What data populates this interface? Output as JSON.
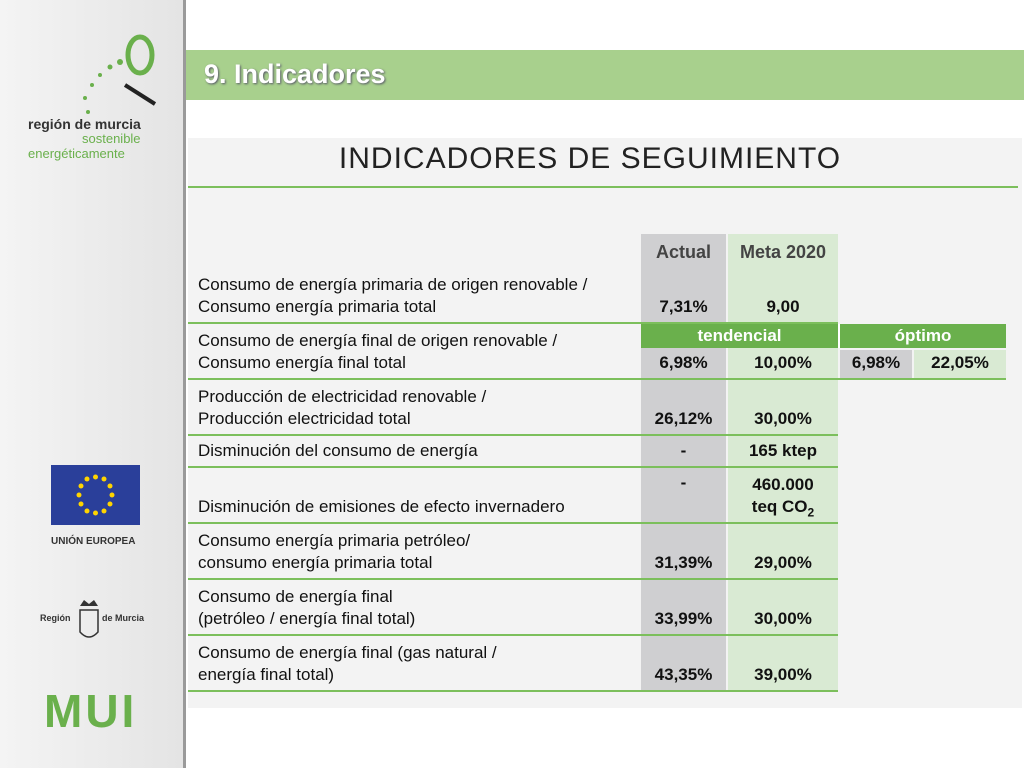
{
  "sidebar": {
    "brand": [
      "región de murcia",
      "sostenible",
      "energéticamente"
    ],
    "eu": "UNIÓN EUROPEA",
    "region": [
      "Región",
      "de Murcia"
    ],
    "mui": "MUI"
  },
  "header": {
    "title": "9.  Indicadores"
  },
  "table": {
    "title": "INDICADORES DE SEGUIMIENTO",
    "columns": [
      "Actual",
      "Meta 2020"
    ],
    "scenarios": [
      "tendencial",
      "óptimo"
    ],
    "rows": [
      {
        "label": [
          "Consumo de energía primaria de origen renovable /",
          "Consumo energía primaria total"
        ],
        "actual": "7,31%",
        "meta": [
          "9,00"
        ]
      },
      {
        "label": [
          "Consumo de energía final de origen renovable /",
          "Consumo energía final total"
        ],
        "values": [
          "6,98%",
          "10,00%",
          "6,98%",
          "22,05%"
        ]
      },
      {
        "label": [
          "Producción de electricidad renovable /",
          "Producción electricidad total"
        ],
        "actual": "26,12%",
        "meta": [
          "30,00%"
        ]
      },
      {
        "label": [
          "Disminución del consumo de energía"
        ],
        "actual": "-",
        "meta": [
          "165 ktep"
        ]
      },
      {
        "label": [
          "Disminución de emisiones de efecto invernadero"
        ],
        "actual": "-",
        "meta": [
          "460.000",
          "teq CO"
        ],
        "meta_sub": "2"
      },
      {
        "label": [
          "Consumo energía primaria petróleo/",
          "consumo energía primaria total"
        ],
        "actual": "31,39%",
        "meta": [
          "29,00%"
        ]
      },
      {
        "label": [
          "Consumo de energía final",
          "(petróleo / energía final total)"
        ],
        "actual": "33,99%",
        "meta": [
          "30,00%"
        ]
      },
      {
        "label": [
          "Consumo de energía final (gas natural /",
          "energía final total)"
        ],
        "actual": "43,35%",
        "meta": [
          "39,00%"
        ]
      }
    ]
  }
}
